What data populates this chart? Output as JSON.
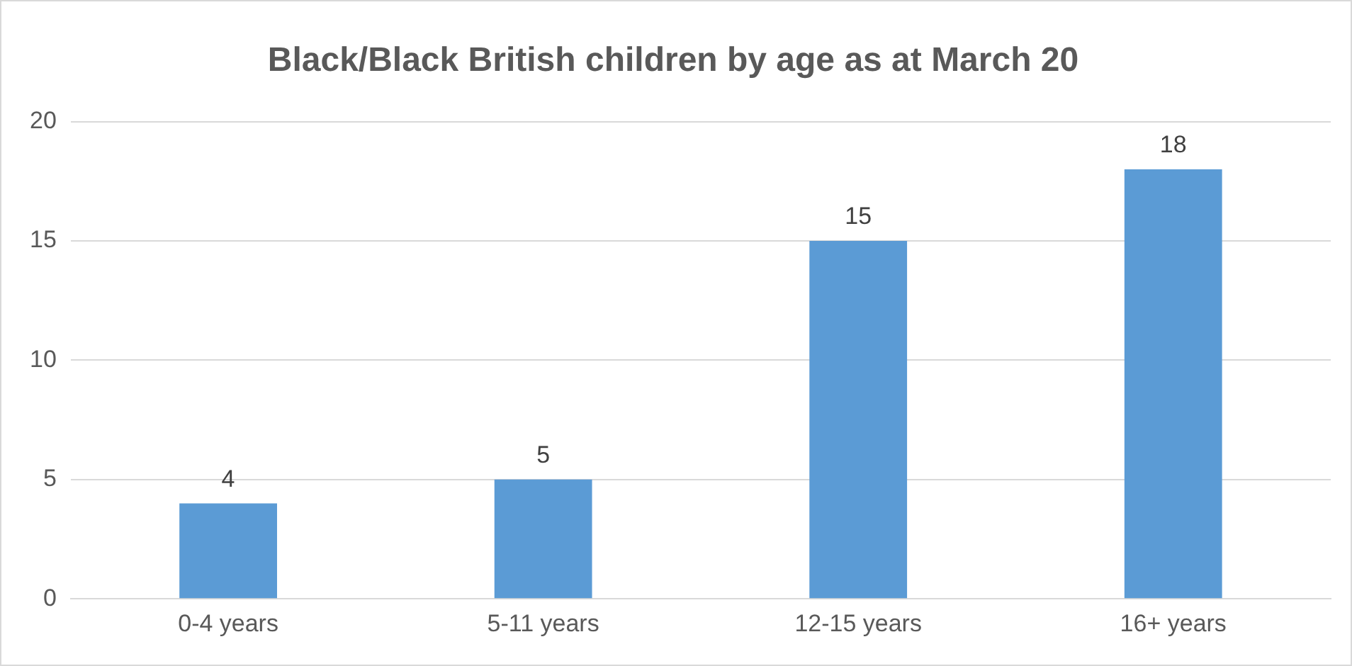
{
  "chart_data": {
    "type": "bar",
    "title": "Black/Black British children by age as at March 20",
    "categories": [
      "0-4 years",
      "5-11 years",
      "12-15 years",
      "16+ years"
    ],
    "values": [
      4,
      5,
      15,
      18
    ],
    "color": "#5b9bd5",
    "ylim": [
      0,
      20
    ],
    "yticks": [
      0,
      5,
      10,
      15,
      20
    ],
    "grid": "y",
    "data_labels": true
  }
}
